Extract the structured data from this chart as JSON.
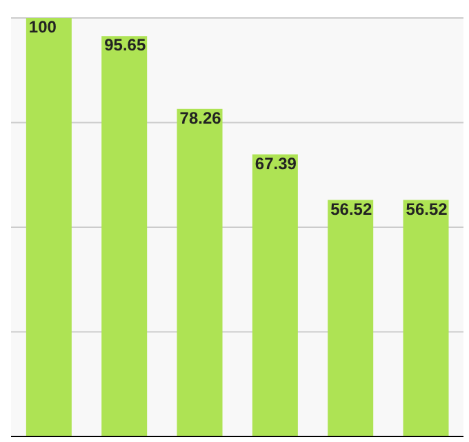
{
  "chart_data": {
    "type": "bar",
    "categories": [
      null,
      null,
      null,
      null,
      null,
      null
    ],
    "values": [
      100,
      95.65,
      78.26,
      67.39,
      56.52,
      56.52
    ],
    "color": "#aee354",
    "ylim": [
      0,
      100
    ],
    "grid": "y",
    "data_labels": true
  }
}
